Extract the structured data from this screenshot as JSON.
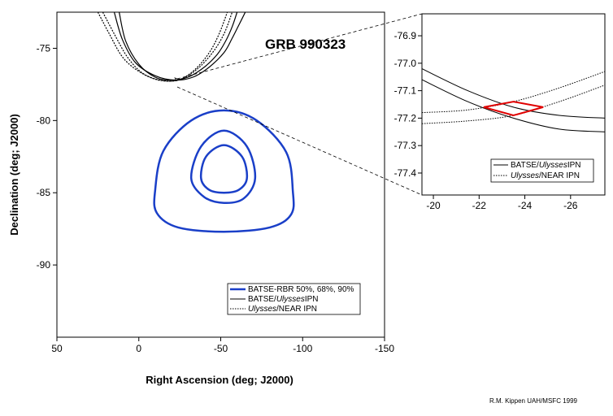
{
  "chart_data": [
    {
      "type": "line",
      "panel": "main",
      "title": "GRB 990323",
      "xlabel": "Right Ascension (deg; J2000)",
      "ylabel": "Declination (deg; J2000)",
      "xlim": [
        50,
        -150
      ],
      "ylim": [
        -95,
        -72.5
      ],
      "xticks": [
        "50",
        "0",
        "-50",
        "-100",
        "-150"
      ],
      "xtick_values": [
        50,
        0,
        -50,
        -100,
        -150
      ],
      "yticks": [
        "-75",
        "-80",
        "-85",
        "-90"
      ],
      "ytick_values": [
        -75,
        -80,
        -85,
        -90
      ],
      "grid": false,
      "legend_position": "bottom-right",
      "legend": [
        {
          "label": "BATSE-RBR 50%, 68%, 90%",
          "style": "thick-solid",
          "color": "#1a3fc8"
        },
        {
          "label": "BATSE/Ulysses IPN",
          "style": "solid",
          "color": "#000000"
        },
        {
          "label": "Ulysses/NEAR IPN",
          "style": "dotted",
          "color": "#000000"
        }
      ],
      "series": [
        {
          "name": "BATSE-RBR 50%, 68%, 90%",
          "contour": "90%",
          "color": "#1a3fc8",
          "x": [
            -52,
            -72,
            -90,
            -94,
            -93,
            -80,
            -52,
            -24,
            -11,
            -10,
            -15,
            -32,
            -52
          ],
          "y": [
            -79.3,
            -80.0,
            -82.2,
            -84.9,
            -86.5,
            -87.4,
            -87.7,
            -87.4,
            -86.4,
            -84.8,
            -82.1,
            -80.0,
            -79.3
          ]
        },
        {
          "name": "BATSE-RBR 50%, 68%, 90%",
          "contour": "68%",
          "color": "#1a3fc8",
          "x": [
            -52,
            -66,
            -71,
            -64,
            -52,
            -40,
            -32,
            -38,
            -52
          ],
          "y": [
            -80.7,
            -81.8,
            -84.0,
            -85.4,
            -85.7,
            -85.3,
            -84.0,
            -81.8,
            -80.7
          ]
        },
        {
          "name": "BATSE-RBR 50%, 68%, 90%",
          "contour": "50%",
          "color": "#1a3fc8",
          "x": [
            -52,
            -63,
            -66,
            -61,
            -52,
            -43,
            -38,
            -41,
            -52
          ],
          "y": [
            -81.7,
            -82.5,
            -84.0,
            -84.8,
            -85.0,
            -84.8,
            -84.0,
            -82.5,
            -81.7
          ]
        },
        {
          "name": "BATSE/Ulysses IPN",
          "line": "outer",
          "color": "#000000",
          "dash": "solid",
          "x": [
            15,
            10,
            2,
            -10,
            -22,
            -33,
            -43,
            -52,
            -57,
            -61,
            -65
          ],
          "y": [
            -72.5,
            -74.4,
            -76.0,
            -76.9,
            -77.2,
            -77.0,
            -76.3,
            -75.3,
            -74.3,
            -73.4,
            -72.5
          ]
        },
        {
          "name": "BATSE/Ulysses IPN",
          "line": "inner",
          "color": "#000000",
          "dash": "solid",
          "x": [
            12,
            8,
            0,
            -10,
            -20,
            -30,
            -40,
            -48,
            -53,
            -57,
            -60
          ],
          "y": [
            -72.5,
            -74.5,
            -76.1,
            -77.0,
            -77.2,
            -77.0,
            -76.3,
            -75.4,
            -74.5,
            -73.5,
            -72.5
          ]
        },
        {
          "name": "Ulysses/NEAR IPN",
          "line": "outer",
          "color": "#000000",
          "dash": "dotted",
          "x": [
            25,
            18,
            10,
            0,
            -12,
            -24,
            -35,
            -45,
            -52,
            -57
          ],
          "y": [
            -72.5,
            -74.0,
            -75.6,
            -76.6,
            -77.2,
            -77.2,
            -76.5,
            -75.3,
            -74.0,
            -72.5
          ]
        },
        {
          "name": "Ulysses/NEAR IPN",
          "line": "inner",
          "color": "#000000",
          "dash": "dotted",
          "x": [
            22,
            15,
            7,
            -2,
            -13,
            -24,
            -34,
            -43,
            -49,
            -54
          ],
          "y": [
            -72.5,
            -74.0,
            -75.6,
            -76.7,
            -77.2,
            -77.2,
            -76.5,
            -75.3,
            -74.0,
            -72.5
          ]
        }
      ],
      "zoom_box": {
        "x": [
          -25,
          -22,
          -23,
          -25
        ],
        "y": [
          -77.15,
          -77.05,
          -77.25,
          -77.15
        ],
        "color": "#000000"
      }
    },
    {
      "type": "line",
      "panel": "inset",
      "xlim": [
        -19.5,
        -27.5
      ],
      "ylim": [
        -77.48,
        -76.82
      ],
      "xticks": [
        "-20",
        "-22",
        "-24",
        "-26"
      ],
      "xtick_values": [
        -20,
        -22,
        -24,
        -26
      ],
      "yticks": [
        "-76.9",
        "-77.0",
        "-77.1",
        "-77.2",
        "-77.3",
        "-77.4"
      ],
      "ytick_values": [
        -76.9,
        -77.0,
        -77.1,
        -77.2,
        -77.3,
        -77.4
      ],
      "grid": false,
      "legend_position": "bottom-right",
      "legend": [
        {
          "label": "BATSE/Ulysses IPN",
          "style": "solid",
          "color": "#000000"
        },
        {
          "label": "Ulysses/NEAR IPN",
          "style": "dotted",
          "color": "#000000"
        }
      ],
      "series": [
        {
          "name": "BATSE/Ulysses IPN",
          "color": "#000000",
          "dash": "solid",
          "x": [
            -19.5,
            -21.5,
            -23.5,
            -25.5,
            -27.5
          ],
          "y": [
            -77.02,
            -77.1,
            -77.16,
            -77.19,
            -77.2
          ]
        },
        {
          "name": "BATSE/Ulysses IPN",
          "color": "#000000",
          "dash": "solid",
          "x": [
            -19.5,
            -21.5,
            -23.5,
            -25.5,
            -27.5
          ],
          "y": [
            -77.06,
            -77.14,
            -77.2,
            -77.24,
            -77.25
          ]
        },
        {
          "name": "Ulysses/NEAR IPN",
          "color": "#000000",
          "dash": "dotted",
          "x": [
            -19.5,
            -21.5,
            -23.5,
            -25.5,
            -27.5
          ],
          "y": [
            -77.18,
            -77.17,
            -77.14,
            -77.09,
            -77.03
          ]
        },
        {
          "name": "Ulysses/NEAR IPN",
          "color": "#000000",
          "dash": "dotted",
          "x": [
            -19.5,
            -21.5,
            -23.5,
            -25.5,
            -27.5
          ],
          "y": [
            -77.22,
            -77.21,
            -77.19,
            -77.14,
            -77.08
          ]
        }
      ],
      "error_region": {
        "color": "#e00000",
        "x": [
          -22.2,
          -23.5,
          -24.8,
          -23.5,
          -22.2
        ],
        "y": [
          -77.16,
          -77.14,
          -77.16,
          -77.19,
          -77.16
        ]
      }
    }
  ],
  "legend_text": {
    "main_1": "BATSE-RBR 50%, 68%, 90%",
    "main_2_pre": "BATSE/",
    "main_2_em": "Ulysses",
    "main_2_post": "IPN",
    "main_3_em": "Ulysses",
    "main_3_post": "NEAR IPN",
    "inset_1_pre": "BATSE/",
    "inset_1_em": "Ulysses",
    "inset_1_post": "IPN",
    "inset_2_em": "Ulysses",
    "inset_2_post": "NEAR IPN"
  },
  "credit": "R.M. Kippen UAH/MSFC 1999"
}
